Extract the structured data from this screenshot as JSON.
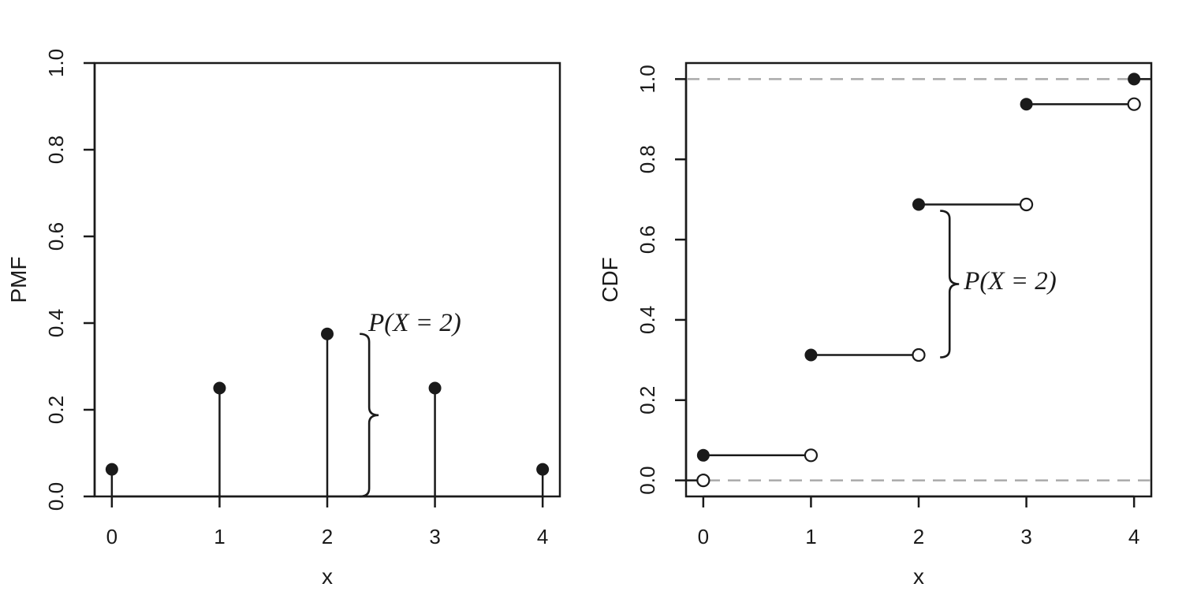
{
  "chart_data": [
    {
      "type": "stem",
      "xlabel": "x",
      "ylabel": "PMF",
      "xlim": [
        -0.16,
        4.16
      ],
      "ylim": [
        0,
        1
      ],
      "xticks": [
        "0",
        "1",
        "2",
        "3",
        "4"
      ],
      "yticks": [
        "0.0",
        "0.2",
        "0.4",
        "0.6",
        "0.8",
        "1.0"
      ],
      "x": [
        0,
        1,
        2,
        3,
        4
      ],
      "values": [
        0.0625,
        0.25,
        0.375,
        0.25,
        0.0625
      ],
      "annotation": {
        "text": "P(X = 2)",
        "brace_x": 2.25,
        "brace_from": 0,
        "brace_to": 0.375
      }
    },
    {
      "type": "step",
      "xlabel": "x",
      "ylabel": "CDF",
      "xlim": [
        -0.16,
        4.16
      ],
      "ylim": [
        -0.04,
        1.04
      ],
      "xticks": [
        "0",
        "1",
        "2",
        "3",
        "4"
      ],
      "yticks": [
        "0.0",
        "0.2",
        "0.4",
        "0.6",
        "0.8",
        "1.0"
      ],
      "x": [
        0,
        1,
        2,
        3,
        4
      ],
      "values": [
        0.0625,
        0.3125,
        0.6875,
        0.9375,
        1.0
      ],
      "reference_lines": [
        0,
        1
      ],
      "annotation": {
        "text": "P(X = 2)",
        "brace_x": 2.17,
        "brace_from": 0.3125,
        "brace_to": 0.6875
      }
    }
  ]
}
